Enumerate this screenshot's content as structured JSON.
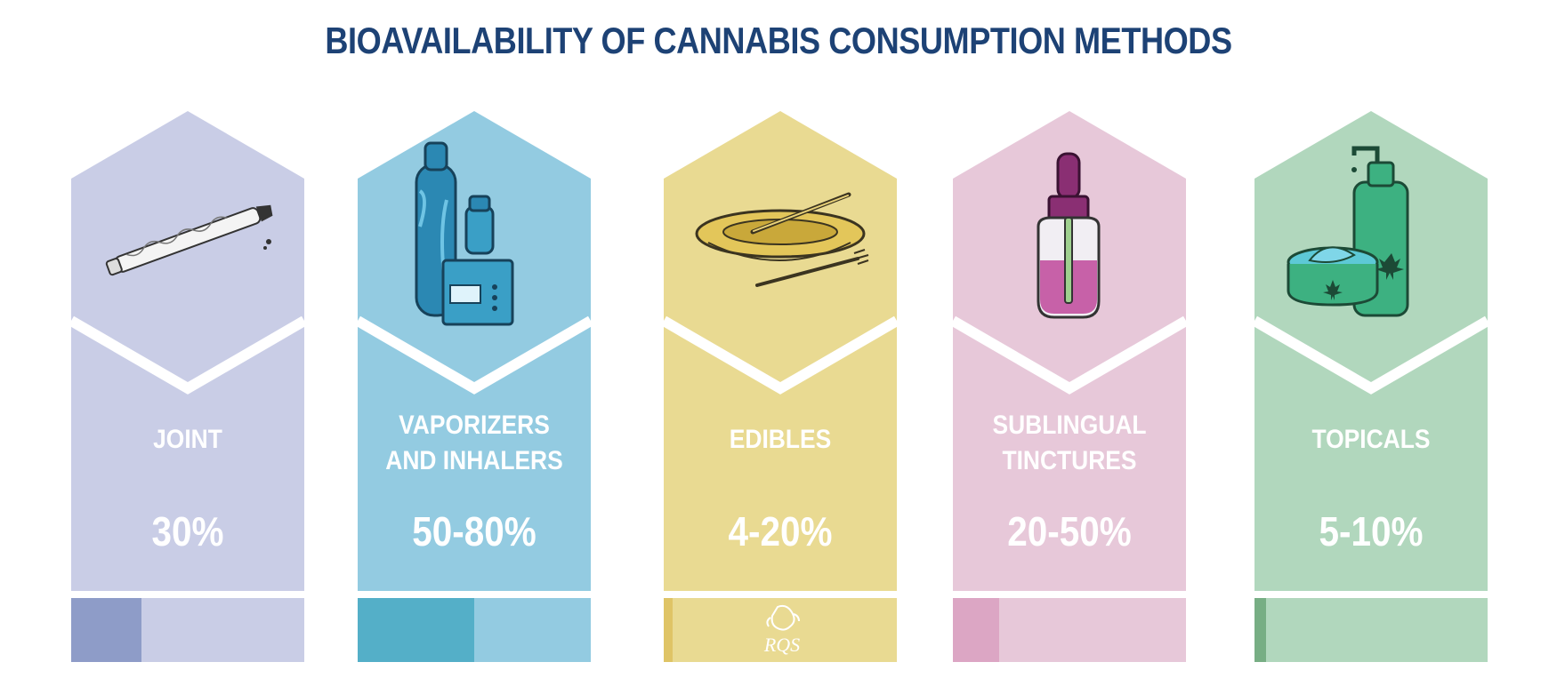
{
  "header": {
    "title": "BIOAVAILABILITY OF CANNABIS CONSUMPTION METHODS"
  },
  "chart_data": {
    "type": "bar",
    "title": "BIOAVAILABILITY OF CANNABIS CONSUMPTION METHODS",
    "categories": [
      "JOINT",
      "VAPORIZERS AND INHALERS",
      "EDIBLES",
      "SUBLINGUAL TINCTURES",
      "TOPICALS"
    ],
    "value_labels": [
      "30%",
      "50-80%",
      "4-20%",
      "20-50%",
      "5-10%"
    ],
    "ranges": [
      [
        30,
        30
      ],
      [
        50,
        80
      ],
      [
        4,
        20
      ],
      [
        20,
        50
      ],
      [
        5,
        10
      ]
    ],
    "ylim": [
      0,
      100
    ],
    "orientation": "horizontal-fill",
    "grid": false,
    "legend": "none"
  },
  "methods": [
    {
      "id": "joint",
      "label_lines": [
        "JOINT"
      ],
      "pct": "30%",
      "icon": "joint-icon",
      "bg": "#c9cde6",
      "fill": "#8e9cc8"
    },
    {
      "id": "vaporizers",
      "label_lines": [
        "VAPORIZERS",
        "AND INHALERS"
      ],
      "pct": "50-80%",
      "icon": "vaporizer-icon",
      "bg": "#93cbe1",
      "fill": "#54afc8"
    },
    {
      "id": "edibles",
      "label_lines": [
        "EDIBLES"
      ],
      "pct": "4-20%",
      "icon": "edibles-plate-icon",
      "bg": "#e9da92",
      "fill": "#dfc466"
    },
    {
      "id": "tinctures",
      "label_lines": [
        "SUBLINGUAL",
        "TINCTURES"
      ],
      "pct": "20-50%",
      "icon": "dropper-bottle-icon",
      "bg": "#e7c8d9",
      "fill": "#dca6c4"
    },
    {
      "id": "topicals",
      "label_lines": [
        "TOPICALS"
      ],
      "pct": "5-10%",
      "icon": "cream-bottle-icon",
      "bg": "#b1d7bd",
      "fill": "#77ae84"
    }
  ],
  "logo": {
    "text": "RQS",
    "icon": "lion-logo-icon"
  }
}
